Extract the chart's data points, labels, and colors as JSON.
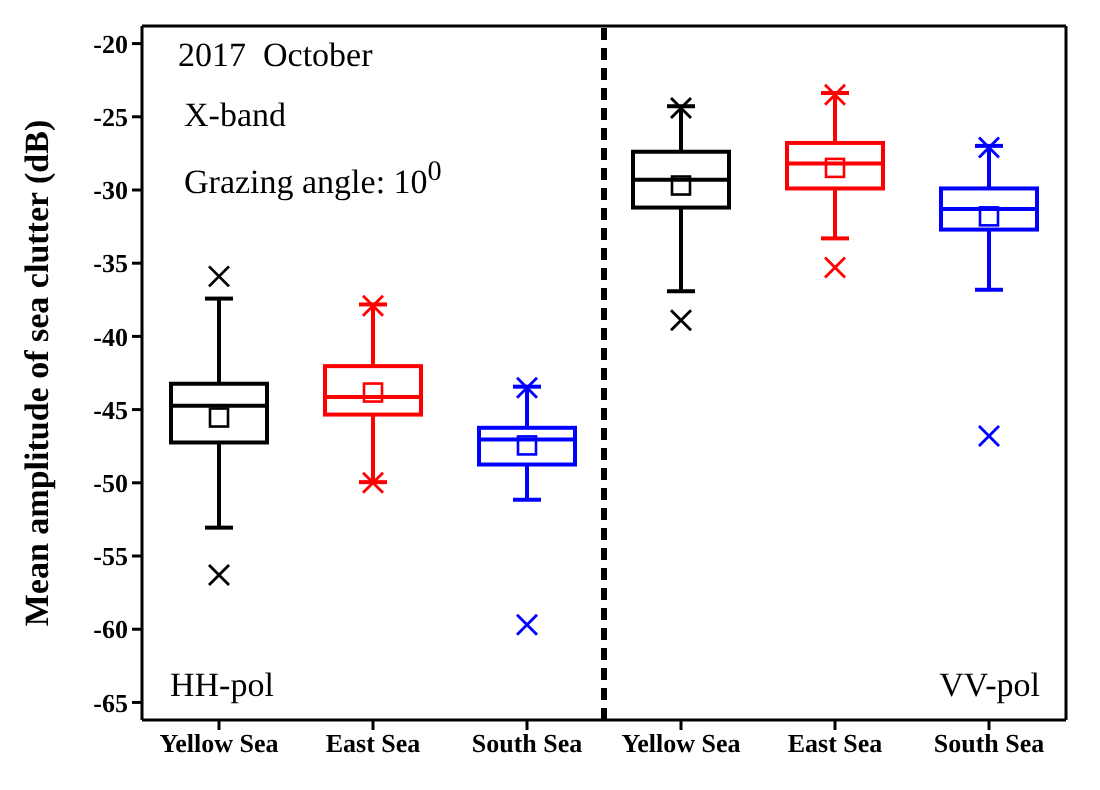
{
  "chart_data": {
    "type": "box",
    "ylabel": "Mean amplitude of sea clutter (dB)",
    "categories": [
      "Yellow Sea",
      "East Sea",
      "South Sea",
      "Yellow Sea",
      "East Sea",
      "South Sea"
    ],
    "colors": [
      "#000000",
      "#ff0000",
      "#0000ff",
      "#000000",
      "#ff0000",
      "#0000ff"
    ],
    "boxes": [
      {
        "low": -53.1,
        "q1": -47.3,
        "median": -44.8,
        "q3": -43.3,
        "high": -37.5,
        "mean": -45.6,
        "outliers": [
          -35.9,
          -56.3
        ]
      },
      {
        "low": -50.0,
        "q1": -45.4,
        "median": -44.2,
        "q3": -42.1,
        "high": -37.9,
        "mean": -43.9,
        "outliers": [
          -37.9,
          -50.0
        ]
      },
      {
        "low": -51.2,
        "q1": -48.8,
        "median": -47.1,
        "q3": -46.3,
        "high": -43.5,
        "mean": -47.5,
        "outliers": [
          -43.5,
          -59.7
        ]
      },
      {
        "low": -37.0,
        "q1": -31.3,
        "median": -29.4,
        "q3": -27.5,
        "high": -24.4,
        "mean": -29.8,
        "outliers": [
          -24.4,
          -38.9
        ]
      },
      {
        "low": -33.4,
        "q1": -30.0,
        "median": -28.3,
        "q3": -26.9,
        "high": -23.5,
        "mean": -28.6,
        "outliers": [
          -23.5,
          -35.3
        ]
      },
      {
        "low": -36.9,
        "q1": -32.8,
        "median": -31.4,
        "q3": -30.0,
        "high": -27.1,
        "mean": -31.9,
        "outliers": [
          -27.1,
          -46.8
        ]
      }
    ],
    "ylim": [
      -66.2,
      -18.8
    ],
    "yticks": [
      -20,
      -25,
      -30,
      -35,
      -40,
      -45,
      -50,
      -55,
      -60,
      -65
    ],
    "annotations": [
      "2017  October",
      "X-band",
      "Grazing angle: 10$^{0}$",
      "HH-pol",
      "VV-pol"
    ]
  }
}
